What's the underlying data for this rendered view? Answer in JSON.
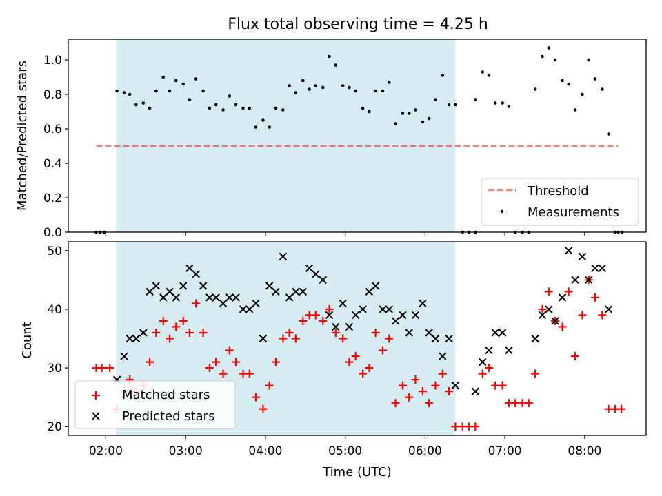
{
  "figure": {
    "title": "Flux total observing time = 4.25 h",
    "xlabel": "Time (UTC)",
    "xticks": [
      {
        "t": 2.0,
        "label": "02:00"
      },
      {
        "t": 3.0,
        "label": "03:00"
      },
      {
        "t": 4.0,
        "label": "04:00"
      },
      {
        "t": 5.0,
        "label": "05:00"
      },
      {
        "t": 6.0,
        "label": "06:00"
      },
      {
        "t": 7.0,
        "label": "07:00"
      },
      {
        "t": 8.0,
        "label": "08:00"
      }
    ],
    "xlim": [
      1.53,
      8.77
    ],
    "shaded_span": [
      2.13,
      6.38
    ],
    "colors": {
      "shade": "#add8e6",
      "threshold": "#ff0000",
      "measurement": "#000000",
      "matched": "#ff0000",
      "predicted": "#000000"
    }
  },
  "chart_data": [
    {
      "type": "scatter",
      "ylabel": "Matched/Predicted stars",
      "ylim": [
        0.0,
        1.12
      ],
      "yticks": [
        "0.0",
        "0.2",
        "0.4",
        "0.6",
        "0.8",
        "1.0"
      ],
      "ytick_values": [
        0.0,
        0.2,
        0.4,
        0.6,
        0.8,
        1.0
      ],
      "threshold": {
        "name": "Threshold",
        "value": 0.5,
        "x": [
          1.88,
          8.42
        ]
      },
      "legend": {
        "placement": "lower-right",
        "entries": [
          "Threshold",
          "Measurements"
        ]
      },
      "series": [
        {
          "name": "Measurements",
          "points": [
            [
              1.88,
              0
            ],
            [
              1.93,
              0
            ],
            [
              1.98,
              0
            ],
            [
              2.14,
              0.82
            ],
            [
              2.23,
              0.81
            ],
            [
              2.3,
              0.8
            ],
            [
              2.38,
              0.74
            ],
            [
              2.47,
              0.75
            ],
            [
              2.55,
              0.72
            ],
            [
              2.63,
              0.82
            ],
            [
              2.72,
              0.9
            ],
            [
              2.8,
              0.82
            ],
            [
              2.88,
              0.88
            ],
            [
              2.97,
              0.86
            ],
            [
              3.05,
              0.77
            ],
            [
              3.13,
              0.89
            ],
            [
              3.22,
              0.82
            ],
            [
              3.3,
              0.72
            ],
            [
              3.38,
              0.74
            ],
            [
              3.47,
              0.71
            ],
            [
              3.55,
              0.79
            ],
            [
              3.63,
              0.74
            ],
            [
              3.72,
              0.72
            ],
            [
              3.8,
              0.72
            ],
            [
              3.88,
              0.61
            ],
            [
              3.97,
              0.65
            ],
            [
              4.05,
              0.61
            ],
            [
              4.13,
              0.72
            ],
            [
              4.22,
              0.71
            ],
            [
              4.3,
              0.85
            ],
            [
              4.38,
              0.81
            ],
            [
              4.47,
              0.88
            ],
            [
              4.55,
              0.83
            ],
            [
              4.63,
              0.85
            ],
            [
              4.72,
              0.84
            ],
            [
              4.8,
              1.02
            ],
            [
              4.88,
              0.97
            ],
            [
              4.97,
              0.85
            ],
            [
              5.05,
              0.84
            ],
            [
              5.13,
              0.82
            ],
            [
              5.22,
              0.72
            ],
            [
              5.3,
              0.7
            ],
            [
              5.38,
              0.82
            ],
            [
              5.47,
              0.82
            ],
            [
              5.55,
              0.87
            ],
            [
              5.63,
              0.63
            ],
            [
              5.72,
              0.69
            ],
            [
              5.8,
              0.69
            ],
            [
              5.88,
              0.71
            ],
            [
              5.97,
              0.64
            ],
            [
              6.05,
              0.66
            ],
            [
              6.13,
              0.77
            ],
            [
              6.22,
              0.91
            ],
            [
              6.3,
              0.74
            ],
            [
              6.38,
              0.74
            ],
            [
              6.47,
              0
            ],
            [
              6.55,
              0
            ],
            [
              6.63,
              0
            ],
            [
              6.63,
              0.77
            ],
            [
              6.72,
              0.93
            ],
            [
              6.8,
              0.91
            ],
            [
              6.88,
              0.75
            ],
            [
              6.97,
              0.75
            ],
            [
              7.05,
              0.73
            ],
            [
              7.13,
              0
            ],
            [
              7.22,
              0
            ],
            [
              7.3,
              0
            ],
            [
              7.38,
              0.83
            ],
            [
              7.47,
              1.02
            ],
            [
              7.55,
              1.07
            ],
            [
              7.63,
              1.0
            ],
            [
              7.72,
              0.88
            ],
            [
              7.8,
              0.86
            ],
            [
              7.88,
              0.71
            ],
            [
              7.97,
              0.8
            ],
            [
              8.05,
              1.0
            ],
            [
              8.13,
              0.89
            ],
            [
              8.22,
              0.83
            ],
            [
              8.3,
              0.57
            ],
            [
              8.38,
              0
            ],
            [
              8.42,
              0
            ],
            [
              8.47,
              0
            ]
          ]
        }
      ]
    },
    {
      "type": "scatter",
      "ylabel": "Count",
      "ylim": [
        18.5,
        51.5
      ],
      "yticks": [
        "20",
        "30",
        "40",
        "50"
      ],
      "ytick_values": [
        20,
        30,
        40,
        50
      ],
      "legend": {
        "placement": "lower-left",
        "entries": [
          "Matched stars",
          "Predicted stars"
        ]
      },
      "series": [
        {
          "name": "Matched stars",
          "marker": "+",
          "points": [
            [
              1.88,
              30
            ],
            [
              1.95,
              30
            ],
            [
              2.05,
              30
            ],
            [
              2.14,
              23
            ],
            [
              2.23,
              26
            ],
            [
              2.3,
              28
            ],
            [
              2.38,
              26
            ],
            [
              2.47,
              27
            ],
            [
              2.55,
              31
            ],
            [
              2.63,
              36
            ],
            [
              2.72,
              38
            ],
            [
              2.8,
              35
            ],
            [
              2.88,
              37
            ],
            [
              2.97,
              38
            ],
            [
              3.05,
              36
            ],
            [
              3.13,
              41
            ],
            [
              3.22,
              36
            ],
            [
              3.3,
              30
            ],
            [
              3.38,
              31
            ],
            [
              3.47,
              29
            ],
            [
              3.55,
              33
            ],
            [
              3.63,
              31
            ],
            [
              3.72,
              29
            ],
            [
              3.8,
              29
            ],
            [
              3.88,
              25
            ],
            [
              3.97,
              23
            ],
            [
              4.05,
              27
            ],
            [
              4.13,
              31
            ],
            [
              4.22,
              35
            ],
            [
              4.3,
              36
            ],
            [
              4.38,
              35
            ],
            [
              4.47,
              38
            ],
            [
              4.55,
              39
            ],
            [
              4.63,
              39
            ],
            [
              4.72,
              38
            ],
            [
              4.8,
              40
            ],
            [
              4.88,
              36
            ],
            [
              4.97,
              35
            ],
            [
              5.05,
              31
            ],
            [
              5.13,
              32
            ],
            [
              5.22,
              29
            ],
            [
              5.3,
              30
            ],
            [
              5.38,
              36
            ],
            [
              5.47,
              33
            ],
            [
              5.55,
              35
            ],
            [
              5.63,
              24
            ],
            [
              5.72,
              27
            ],
            [
              5.8,
              25
            ],
            [
              5.88,
              28
            ],
            [
              5.97,
              26
            ],
            [
              6.05,
              24
            ],
            [
              6.13,
              27
            ],
            [
              6.22,
              29
            ],
            [
              6.3,
              26
            ],
            [
              6.38,
              20
            ],
            [
              6.47,
              20
            ],
            [
              6.55,
              20
            ],
            [
              6.63,
              20
            ],
            [
              6.72,
              29
            ],
            [
              6.8,
              30
            ],
            [
              6.88,
              27
            ],
            [
              6.97,
              27
            ],
            [
              7.05,
              24
            ],
            [
              7.13,
              24
            ],
            [
              7.22,
              24
            ],
            [
              7.3,
              24
            ],
            [
              7.38,
              29
            ],
            [
              7.47,
              40
            ],
            [
              7.55,
              43
            ],
            [
              7.63,
              38
            ],
            [
              7.72,
              37
            ],
            [
              7.8,
              43
            ],
            [
              7.88,
              32
            ],
            [
              7.97,
              39
            ],
            [
              8.05,
              45
            ],
            [
              8.13,
              42
            ],
            [
              8.22,
              39
            ],
            [
              8.3,
              23
            ],
            [
              8.38,
              23
            ],
            [
              8.46,
              23
            ]
          ]
        },
        {
          "name": "Predicted stars",
          "marker": "x",
          "points": [
            [
              2.14,
              28
            ],
            [
              2.23,
              32
            ],
            [
              2.3,
              35
            ],
            [
              2.38,
              35
            ],
            [
              2.47,
              36
            ],
            [
              2.55,
              43
            ],
            [
              2.63,
              44
            ],
            [
              2.72,
              42
            ],
            [
              2.8,
              43
            ],
            [
              2.88,
              42
            ],
            [
              2.97,
              44
            ],
            [
              3.05,
              47
            ],
            [
              3.13,
              46
            ],
            [
              3.22,
              44
            ],
            [
              3.3,
              42
            ],
            [
              3.38,
              42
            ],
            [
              3.47,
              41
            ],
            [
              3.55,
              42
            ],
            [
              3.63,
              42
            ],
            [
              3.72,
              40
            ],
            [
              3.8,
              40
            ],
            [
              3.88,
              41
            ],
            [
              3.97,
              35
            ],
            [
              4.05,
              44
            ],
            [
              4.13,
              43
            ],
            [
              4.22,
              49
            ],
            [
              4.3,
              42
            ],
            [
              4.38,
              43
            ],
            [
              4.47,
              43
            ],
            [
              4.55,
              47
            ],
            [
              4.63,
              46
            ],
            [
              4.72,
              45
            ],
            [
              4.8,
              39
            ],
            [
              4.88,
              37
            ],
            [
              4.97,
              41
            ],
            [
              5.05,
              37
            ],
            [
              5.13,
              39
            ],
            [
              5.22,
              40
            ],
            [
              5.3,
              43
            ],
            [
              5.38,
              44
            ],
            [
              5.47,
              40
            ],
            [
              5.55,
              40
            ],
            [
              5.63,
              38
            ],
            [
              5.72,
              39
            ],
            [
              5.8,
              36
            ],
            [
              5.88,
              39
            ],
            [
              5.97,
              41
            ],
            [
              6.05,
              36
            ],
            [
              6.13,
              35
            ],
            [
              6.22,
              32
            ],
            [
              6.3,
              35
            ],
            [
              6.38,
              27
            ],
            [
              6.63,
              26
            ],
            [
              6.72,
              31
            ],
            [
              6.8,
              33
            ],
            [
              6.88,
              36
            ],
            [
              6.97,
              36
            ],
            [
              7.05,
              33
            ],
            [
              7.38,
              35
            ],
            [
              7.47,
              39
            ],
            [
              7.55,
              40
            ],
            [
              7.63,
              38
            ],
            [
              7.72,
              42
            ],
            [
              7.8,
              50
            ],
            [
              7.88,
              45
            ],
            [
              7.97,
              49
            ],
            [
              8.05,
              45
            ],
            [
              8.13,
              47
            ],
            [
              8.22,
              47
            ],
            [
              8.3,
              40
            ]
          ]
        }
      ]
    }
  ]
}
